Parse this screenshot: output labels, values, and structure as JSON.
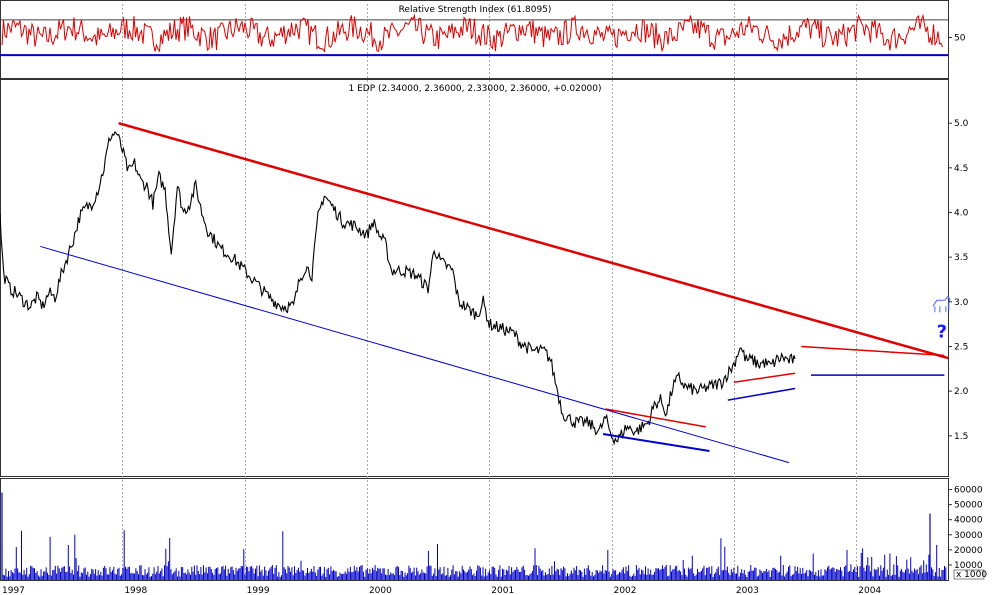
{
  "chart_data": [
    {
      "type": "line",
      "panel": "rsi",
      "title": "Relative Strength Index (61.8095)",
      "series": [],
      "y_tick_labels": [
        "50"
      ],
      "y_ticks": [
        50
      ],
      "ylim": [
        20,
        88
      ],
      "reference_levels": [
        70,
        30
      ],
      "colors": {
        "line": "#e00000",
        "upper_level": "#404040",
        "lower_level": "#0000cc"
      }
    },
    {
      "type": "line",
      "panel": "price",
      "title": "1 EDP (2.34000, 2.36000, 2.33000, 2.36000, +0.02000)",
      "ylim": [
        1.05,
        5.45
      ],
      "y_ticks": [
        1.5,
        2.0,
        2.5,
        3.0,
        3.5,
        4.0,
        4.5,
        5.0
      ],
      "y_tick_labels": [
        "1.5",
        "2.0",
        "2.5",
        "3.0",
        "3.5",
        "4.0",
        "4.5",
        "5.0"
      ],
      "x_tick_labels": [
        "1997",
        "1998",
        "1999",
        "2000",
        "2001",
        "2002",
        "2003",
        "2004"
      ],
      "x_ticks": [
        1997.0,
        1998.0,
        1999.0,
        2000.0,
        2001.0,
        2002.0,
        2003.0,
        2004.0
      ],
      "xlim": [
        1997.0,
        2004.75
      ],
      "price_points": [
        [
          1997.0,
          3.95
        ],
        [
          1997.03,
          3.3
        ],
        [
          1997.08,
          3.15
        ],
        [
          1997.13,
          3.1
        ],
        [
          1997.2,
          3.0
        ],
        [
          1997.25,
          2.95
        ],
        [
          1997.3,
          3.05
        ],
        [
          1997.35,
          2.95
        ],
        [
          1997.4,
          3.1
        ],
        [
          1997.45,
          3.05
        ],
        [
          1997.5,
          3.3
        ],
        [
          1997.55,
          3.5
        ],
        [
          1997.6,
          3.7
        ],
        [
          1997.65,
          3.95
        ],
        [
          1997.7,
          4.05
        ],
        [
          1997.75,
          4.1
        ],
        [
          1997.8,
          4.25
        ],
        [
          1997.85,
          4.5
        ],
        [
          1997.9,
          4.85
        ],
        [
          1997.95,
          4.9
        ],
        [
          1998.0,
          4.7
        ],
        [
          1998.05,
          4.45
        ],
        [
          1998.1,
          4.55
        ],
        [
          1998.15,
          4.35
        ],
        [
          1998.2,
          4.3
        ],
        [
          1998.25,
          4.1
        ],
        [
          1998.3,
          4.4
        ],
        [
          1998.35,
          4.25
        ],
        [
          1998.4,
          3.55
        ],
        [
          1998.45,
          4.3
        ],
        [
          1998.5,
          4.0
        ],
        [
          1998.55,
          4.1
        ],
        [
          1998.6,
          4.3
        ],
        [
          1998.65,
          4.0
        ],
        [
          1998.7,
          3.8
        ],
        [
          1998.8,
          3.6
        ],
        [
          1998.9,
          3.5
        ],
        [
          1999.0,
          3.35
        ],
        [
          1999.1,
          3.2
        ],
        [
          1999.2,
          3.05
        ],
        [
          1999.3,
          2.95
        ],
        [
          1999.4,
          2.95
        ],
        [
          1999.45,
          3.25
        ],
        [
          1999.5,
          3.4
        ],
        [
          1999.55,
          3.3
        ],
        [
          1999.6,
          3.95
        ],
        [
          1999.65,
          4.2
        ],
        [
          1999.7,
          4.1
        ],
        [
          1999.8,
          3.9
        ],
        [
          1999.9,
          3.85
        ],
        [
          2000.0,
          3.75
        ],
        [
          2000.05,
          3.9
        ],
        [
          2000.1,
          3.75
        ],
        [
          2000.15,
          3.65
        ],
        [
          2000.2,
          3.35
        ],
        [
          2000.3,
          3.35
        ],
        [
          2000.4,
          3.3
        ],
        [
          2000.5,
          3.15
        ],
        [
          2000.55,
          3.6
        ],
        [
          2000.6,
          3.45
        ],
        [
          2000.7,
          3.35
        ],
        [
          2000.75,
          3.0
        ],
        [
          2000.8,
          2.95
        ],
        [
          2000.9,
          2.85
        ],
        [
          2000.95,
          3.0
        ],
        [
          2001.0,
          2.75
        ],
        [
          2001.1,
          2.7
        ],
        [
          2001.2,
          2.65
        ],
        [
          2001.25,
          2.55
        ],
        [
          2001.35,
          2.45
        ],
        [
          2001.45,
          2.45
        ],
        [
          2001.5,
          2.35
        ],
        [
          2001.55,
          2.05
        ],
        [
          2001.6,
          1.75
        ],
        [
          2001.7,
          1.65
        ],
        [
          2001.8,
          1.65
        ],
        [
          2001.9,
          1.55
        ],
        [
          2001.95,
          1.7
        ],
        [
          2002.0,
          1.5
        ],
        [
          2002.05,
          1.45
        ],
        [
          2002.12,
          1.6
        ],
        [
          2002.2,
          1.55
        ],
        [
          2002.3,
          1.65
        ],
        [
          2002.35,
          1.85
        ],
        [
          2002.4,
          1.9
        ],
        [
          2002.45,
          1.75
        ],
        [
          2002.5,
          2.05
        ],
        [
          2002.55,
          2.15
        ],
        [
          2002.6,
          2.05
        ],
        [
          2002.7,
          2.0
        ],
        [
          2002.8,
          2.05
        ],
        [
          2002.9,
          2.1
        ],
        [
          2002.95,
          2.2
        ],
        [
          2003.0,
          2.3
        ],
        [
          2003.05,
          2.5
        ],
        [
          2003.1,
          2.35
        ],
        [
          2003.15,
          2.35
        ],
        [
          2003.2,
          2.3
        ],
        [
          2003.25,
          2.32
        ],
        [
          2003.3,
          2.28
        ],
        [
          2003.35,
          2.35
        ],
        [
          2003.4,
          2.38
        ],
        [
          2003.45,
          2.34
        ],
        [
          2003.5,
          2.36
        ]
      ],
      "trendlines": [
        {
          "color": "#e00000",
          "width": 2.5,
          "from": [
            1997.97,
            5.0
          ],
          "to": [
            2004.75,
            2.37
          ]
        },
        {
          "color": "#0000cc",
          "width": 1.0,
          "from": [
            1997.33,
            3.62
          ],
          "to": [
            2003.45,
            1.2
          ]
        },
        {
          "color": "#e00000",
          "width": 1.5,
          "from": [
            2001.95,
            1.8
          ],
          "to": [
            2002.77,
            1.6
          ]
        },
        {
          "color": "#0000cc",
          "width": 2.0,
          "from": [
            2001.93,
            1.52
          ],
          "to": [
            2002.8,
            1.33
          ]
        },
        {
          "color": "#e00000",
          "width": 1.5,
          "from": [
            2003.0,
            2.1
          ],
          "to": [
            2003.5,
            2.2
          ]
        },
        {
          "color": "#0000cc",
          "width": 1.5,
          "from": [
            2002.95,
            1.9
          ],
          "to": [
            2003.5,
            2.03
          ]
        },
        {
          "color": "#e00000",
          "width": 1.5,
          "from": [
            2003.55,
            2.5
          ],
          "to": [
            2004.72,
            2.4
          ]
        },
        {
          "color": "#0000cc",
          "width": 1.5,
          "from": [
            2003.63,
            2.18
          ],
          "to": [
            2004.72,
            2.18
          ]
        }
      ],
      "annotations": [
        {
          "text": "?",
          "x": 2004.7,
          "y": 2.6,
          "color": "#1a1aff"
        }
      ],
      "colors": {
        "price": "#000000",
        "grid": "#aaaaaa",
        "panel_border": "#333333"
      }
    },
    {
      "type": "bar",
      "panel": "volume",
      "ylim": [
        0,
        65000
      ],
      "y_ticks": [
        10000,
        20000,
        30000,
        40000,
        50000,
        60000
      ],
      "y_tick_labels": [
        "10000",
        "20000",
        "30000",
        "40000",
        "50000",
        "60000"
      ],
      "unit_label": "x 1000",
      "x_tick_labels": [
        "1997",
        "1998",
        "1999",
        "2000",
        "2001",
        "2002",
        "2003",
        "2004"
      ],
      "x_ticks": [
        1997.0,
        1998.0,
        1999.0,
        2000.0,
        2001.0,
        2002.0,
        2003.0,
        2004.0
      ],
      "colors": {
        "bars": "#0000cc"
      }
    }
  ]
}
